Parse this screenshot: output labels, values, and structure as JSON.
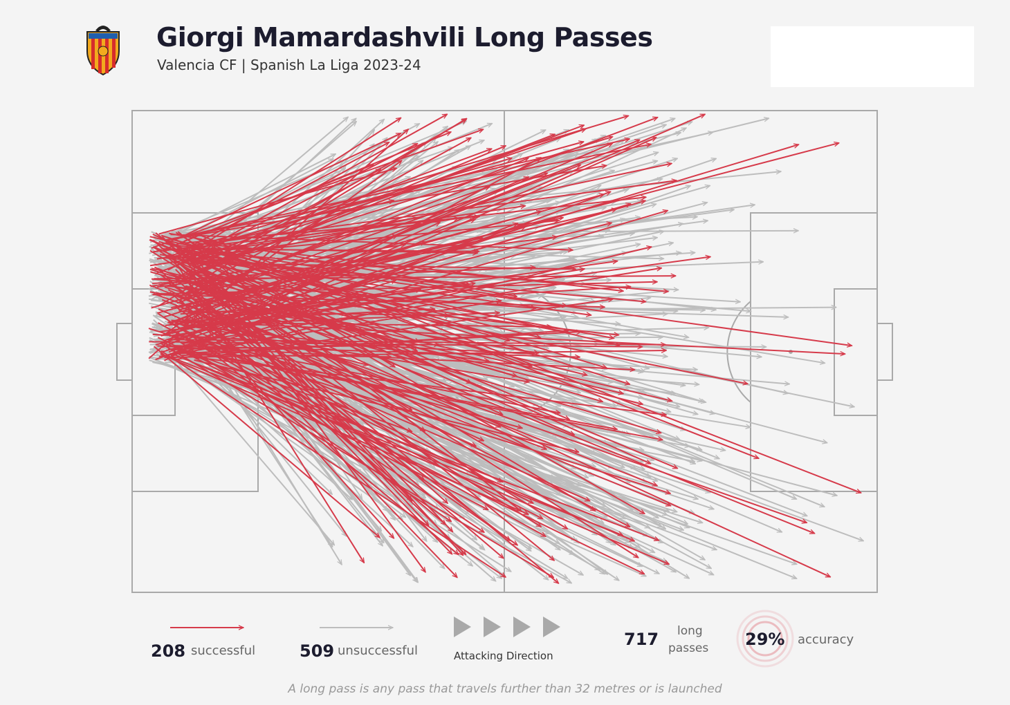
{
  "header": {
    "title": "Giorgi Mamardashvili Long Passes",
    "subtitle": "Valencia CF | Spanish La Liga 2023-24"
  },
  "colors": {
    "successful": "#d63a4a",
    "unsuccessful": "#bdbdbd",
    "pitch_line": "#a9a9a9",
    "background": "#f4f4f4",
    "title": "#1c1c2e"
  },
  "legend": {
    "successful_count": "208",
    "successful_label": "successful",
    "unsuccessful_count": "509",
    "unsuccessful_label": "unsuccessful",
    "direction_label": "Attacking Direction",
    "total_count": "717",
    "total_label_line1": "long",
    "total_label_line2": "passes",
    "accuracy_value": "29%",
    "accuracy_label": "accuracy"
  },
  "footnote": "A long pass is any pass that travels further than 32 metres or is launched",
  "chart_data": {
    "type": "scatter",
    "subtype": "pass-map",
    "title": "Giorgi Mamardashvili Long Passes",
    "subtitle": "Valencia CF | Spanish La Liga 2023-24",
    "series": [
      {
        "name": "successful",
        "count": 208
      },
      {
        "name": "unsuccessful",
        "count": 509
      }
    ],
    "total": 717,
    "accuracy_pct": 29,
    "attacking_direction": "left-to-right",
    "origin_area": "own goal area",
    "note": "A long pass is any pass that travels further than 32 metres or is launched"
  }
}
